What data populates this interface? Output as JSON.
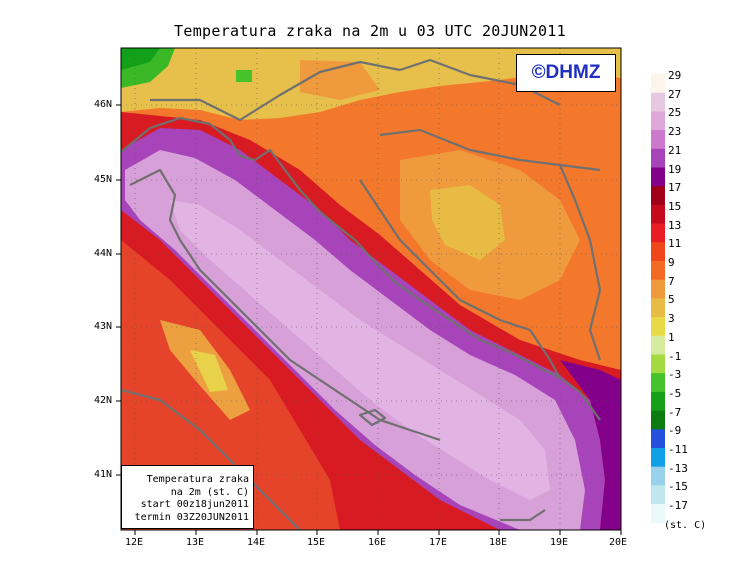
{
  "title": "Temperatura zraka na 2m u 03 UTC 20JUN2011",
  "brand": "©DHMZ",
  "info_box": {
    "line1": "Temperatura zraka",
    "line2": "na 2m (st. C)",
    "line3": "start 00z18jun2011",
    "line4": "termin 03Z20JUN2011"
  },
  "axes": {
    "lon_labels": [
      "12E",
      "13E",
      "14E",
      "15E",
      "16E",
      "17E",
      "18E",
      "19E",
      "20E"
    ],
    "lat_labels": [
      "46N",
      "45N",
      "44N",
      "43N",
      "42N",
      "41N"
    ]
  },
  "legend": {
    "units": "(st. C)",
    "labels": [
      "29",
      "27",
      "25",
      "23",
      "21",
      "19",
      "17",
      "15",
      "13",
      "11",
      "9",
      "7",
      "5",
      "3",
      "1",
      "-1",
      "-3",
      "-5",
      "-7",
      "-9",
      "-11",
      "-13",
      "-15",
      "-17"
    ],
    "colors": [
      "#fdf4ea",
      "#e6c8e2",
      "#dfa8da",
      "#cc78cc",
      "#a844ba",
      "#82008a",
      "#a00018",
      "#c60a1e",
      "#e81e24",
      "#f0461c",
      "#f36a24",
      "#ef9a3c",
      "#e8bc44",
      "#e8da46",
      "#d6ea9e",
      "#a2da40",
      "#46c22a",
      "#16a018",
      "#0c7c10",
      "#2450dc",
      "#10a0e8",
      "#98d2ea",
      "#c0e6ee",
      "#eafafa"
    ]
  },
  "colors": {
    "sea": "#d8a0d8",
    "sea_inner": "#e2b4e4",
    "coast_purple": "#b86ac8",
    "line_gray": "#707070"
  }
}
